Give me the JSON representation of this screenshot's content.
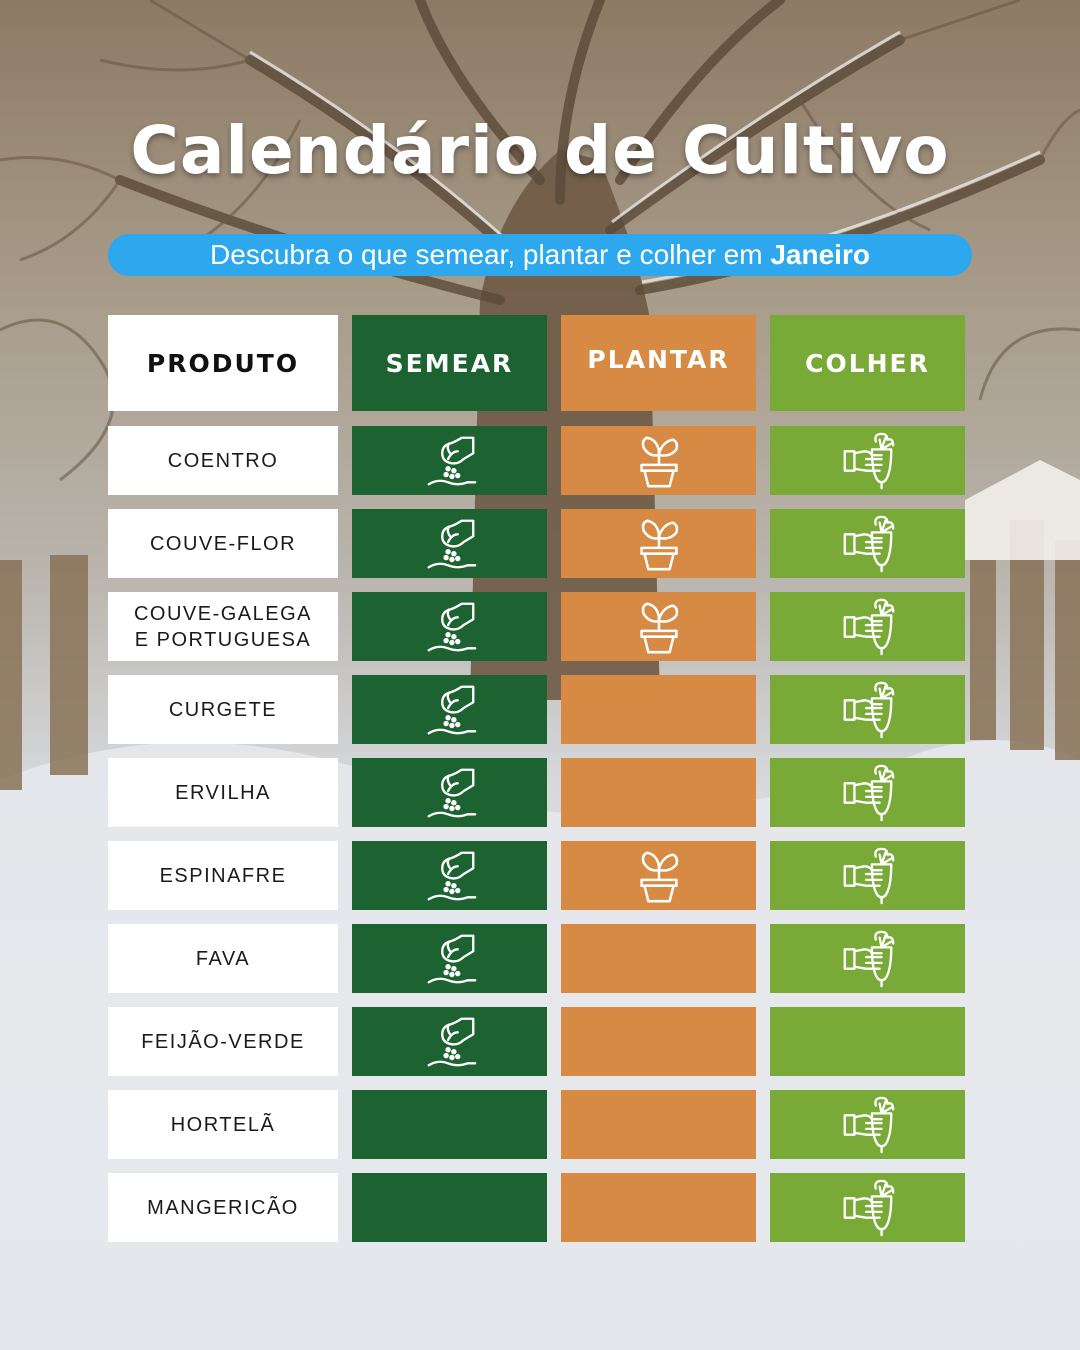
{
  "title": "Calendário de Cultivo",
  "subtitle": {
    "text": "Descubra o que semear, plantar e colher em ",
    "month": "Janeiro"
  },
  "headers": {
    "produto": "PRODUTO",
    "semear": "SEMEAR",
    "plantar": "PLANTAR",
    "colher": "COLHER"
  },
  "colors": {
    "semear": "#1d6331",
    "plantar": "#d68a43",
    "colher": "#79aa38",
    "subtitle_bar": "#2da8ef"
  },
  "icons": {
    "semear": "sowing-hand-icon",
    "plantar": "potted-plant-icon",
    "colher": "harvest-hand-icon"
  },
  "rows": [
    {
      "produto": "COENTRO",
      "semear": true,
      "plantar": true,
      "colher": true
    },
    {
      "produto": "COUVE-FLOR",
      "semear": true,
      "plantar": true,
      "colher": true
    },
    {
      "produto": "COUVE-GALEGA\nE PORTUGUESA",
      "semear": true,
      "plantar": true,
      "colher": true
    },
    {
      "produto": "CURGETE",
      "semear": true,
      "plantar": false,
      "colher": true
    },
    {
      "produto": "ERVILHA",
      "semear": true,
      "plantar": false,
      "colher": true
    },
    {
      "produto": "ESPINAFRE",
      "semear": true,
      "plantar": true,
      "colher": true
    },
    {
      "produto": "FAVA",
      "semear": true,
      "plantar": false,
      "colher": true
    },
    {
      "produto": "FEIJÃO-VERDE",
      "semear": true,
      "plantar": false,
      "colher": false
    },
    {
      "produto": "HORTELÃ",
      "semear": false,
      "plantar": false,
      "colher": true
    },
    {
      "produto": "MANGERICÃO",
      "semear": false,
      "plantar": false,
      "colher": true
    }
  ]
}
